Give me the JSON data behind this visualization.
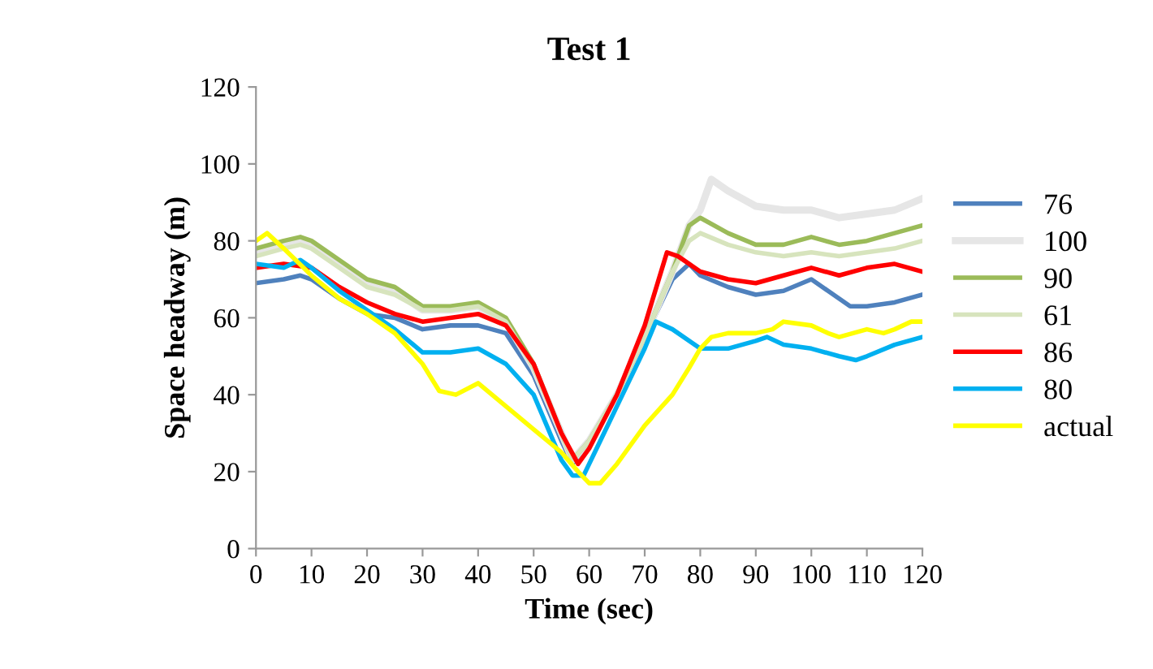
{
  "chart_data": {
    "type": "line",
    "title": "Test 1",
    "xlabel": "Time (sec)",
    "ylabel": "Space headway (m)",
    "xlim": [
      0,
      120
    ],
    "xticks": [
      0,
      10,
      20,
      30,
      40,
      50,
      60,
      70,
      80,
      90,
      100,
      110,
      120
    ],
    "ylim": [
      0,
      120
    ],
    "yticks": [
      0,
      20,
      40,
      60,
      80,
      100,
      120
    ],
    "grid": false,
    "legend": "right",
    "marker": "none",
    "line_style": "solid",
    "series": [
      {
        "name": "76",
        "color": "#4f81bd",
        "x": [
          0,
          5,
          8,
          10,
          15,
          20,
          25,
          30,
          35,
          40,
          45,
          50,
          55,
          57,
          60,
          65,
          70,
          75,
          78,
          80,
          85,
          90,
          95,
          100,
          105,
          107,
          110,
          115,
          120
        ],
        "values": [
          69,
          70,
          71,
          70,
          65,
          61,
          60,
          57,
          58,
          58,
          56,
          45,
          28,
          22,
          28,
          40,
          55,
          70,
          74,
          71,
          68,
          66,
          67,
          70,
          65,
          63,
          63,
          64,
          66
        ]
      },
      {
        "name": "100",
        "color": "#e6e6e6",
        "x": [
          0,
          5,
          8,
          10,
          15,
          20,
          25,
          30,
          35,
          40,
          45,
          50,
          55,
          57,
          60,
          65,
          70,
          75,
          78,
          80,
          82,
          85,
          90,
          95,
          100,
          105,
          110,
          115,
          120
        ],
        "values": [
          77,
          79,
          80,
          79,
          74,
          69,
          67,
          62,
          62,
          63,
          59,
          47,
          30,
          23,
          28,
          40,
          55,
          72,
          84,
          88,
          96,
          93,
          89,
          88,
          88,
          86,
          87,
          88,
          91
        ]
      },
      {
        "name": "90",
        "color": "#9bbb59",
        "x": [
          0,
          5,
          8,
          10,
          15,
          20,
          25,
          30,
          35,
          40,
          45,
          50,
          55,
          57,
          60,
          65,
          70,
          75,
          78,
          80,
          85,
          90,
          95,
          100,
          105,
          110,
          115,
          120
        ],
        "values": [
          78,
          80,
          81,
          80,
          75,
          70,
          68,
          63,
          63,
          64,
          60,
          48,
          30,
          23,
          28,
          40,
          55,
          72,
          84,
          86,
          82,
          79,
          79,
          81,
          79,
          80,
          82,
          84
        ]
      },
      {
        "name": "61",
        "color": "#d7e4bd",
        "x": [
          0,
          5,
          8,
          10,
          15,
          20,
          25,
          30,
          35,
          40,
          45,
          50,
          55,
          57,
          60,
          65,
          70,
          75,
          78,
          80,
          85,
          90,
          95,
          100,
          105,
          110,
          115,
          120
        ],
        "values": [
          76,
          78,
          79,
          78,
          73,
          68,
          66,
          62,
          62,
          63,
          59,
          47,
          30,
          23,
          28,
          40,
          55,
          72,
          80,
          82,
          79,
          77,
          76,
          77,
          76,
          77,
          78,
          80
        ]
      },
      {
        "name": "86",
        "color": "#ff0000",
        "x": [
          0,
          5,
          10,
          15,
          20,
          25,
          30,
          35,
          40,
          45,
          50,
          55,
          58,
          60,
          65,
          70,
          74,
          76,
          80,
          85,
          90,
          95,
          100,
          105,
          110,
          115,
          120
        ],
        "values": [
          73,
          74,
          73,
          68,
          64,
          61,
          59,
          60,
          61,
          58,
          48,
          30,
          22,
          26,
          40,
          58,
          77,
          76,
          72,
          70,
          69,
          71,
          73,
          71,
          73,
          74,
          72
        ]
      },
      {
        "name": "80",
        "color": "#00b0f0",
        "x": [
          0,
          5,
          8,
          10,
          15,
          20,
          25,
          30,
          35,
          40,
          45,
          50,
          55,
          57,
          59,
          62,
          65,
          70,
          72,
          75,
          80,
          85,
          90,
          92,
          95,
          100,
          105,
          108,
          110,
          115,
          120
        ],
        "values": [
          74,
          73,
          75,
          73,
          67,
          62,
          57,
          51,
          51,
          52,
          48,
          40,
          23,
          19,
          19,
          28,
          37,
          52,
          59,
          57,
          52,
          52,
          54,
          55,
          53,
          52,
          50,
          49,
          50,
          53,
          55
        ]
      },
      {
        "name": "actual",
        "color": "#ffff00",
        "x": [
          0,
          2,
          5,
          10,
          15,
          20,
          25,
          30,
          33,
          36,
          40,
          45,
          50,
          55,
          58,
          60,
          62,
          65,
          70,
          75,
          78,
          80,
          82,
          85,
          90,
          93,
          95,
          100,
          103,
          105,
          110,
          113,
          115,
          118,
          120
        ],
        "values": [
          80,
          82,
          78,
          71,
          65,
          61,
          56,
          48,
          41,
          40,
          43,
          37,
          31,
          25,
          20,
          17,
          17,
          22,
          32,
          40,
          47,
          52,
          55,
          56,
          56,
          57,
          59,
          58,
          56,
          55,
          57,
          56,
          57,
          59,
          59
        ]
      }
    ]
  }
}
